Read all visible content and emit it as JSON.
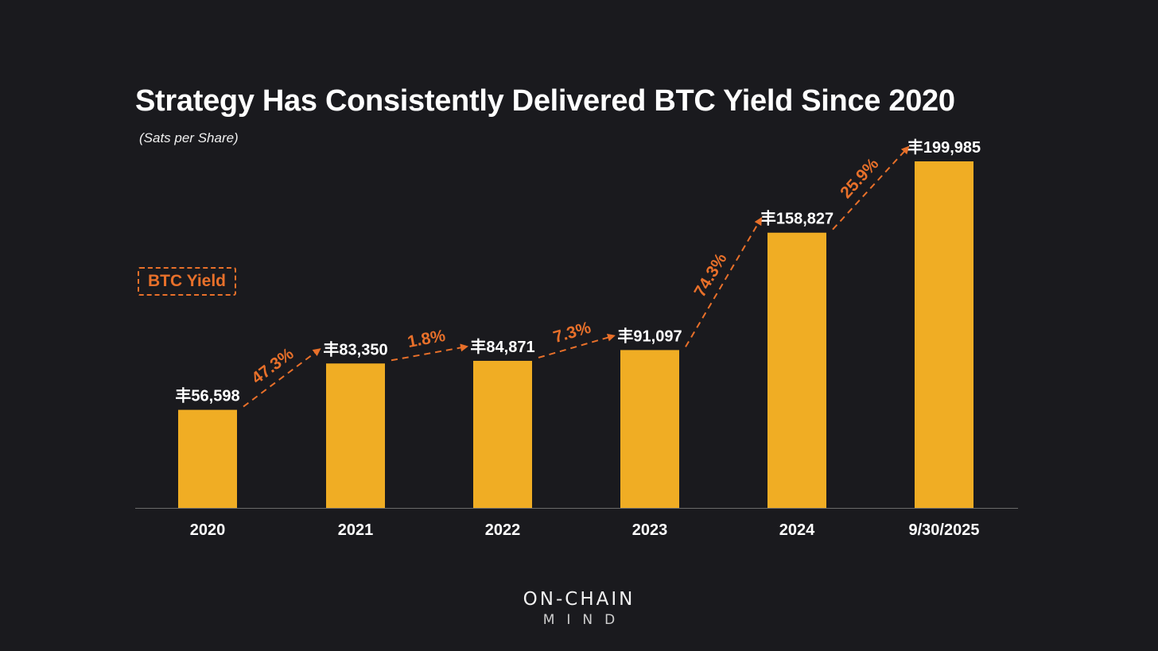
{
  "chart_data": {
    "type": "bar",
    "title": "Strategy Has Consistently Delivered BTC Yield Since 2020",
    "subtitle": "(Sats per Share)",
    "unit_symbol": "丰",
    "categories": [
      "2020",
      "2021",
      "2022",
      "2023",
      "2024",
      "9/30/2025"
    ],
    "values": [
      56598,
      83350,
      84871,
      91097,
      158827,
      199985
    ],
    "value_labels": [
      "丰56,598",
      "丰83,350",
      "丰84,871",
      "丰91,097",
      "丰158,827",
      "丰199,985"
    ],
    "yield_labels": [
      "47.3%",
      "1.8%",
      "7.3%",
      "74.3%",
      "25.9%"
    ],
    "legend_label": "BTC Yield",
    "ylim": [
      0,
      200000
    ],
    "xlabel": "",
    "ylabel": "",
    "grid": false,
    "colors": {
      "bar": "#f0ad24",
      "yield": "#e8702a",
      "axis": "#6a6a6a",
      "text": "#ffffff",
      "background": "#1a1a1e"
    }
  },
  "brand": {
    "line1": "ON-CHAIN",
    "line2": "MIND"
  }
}
